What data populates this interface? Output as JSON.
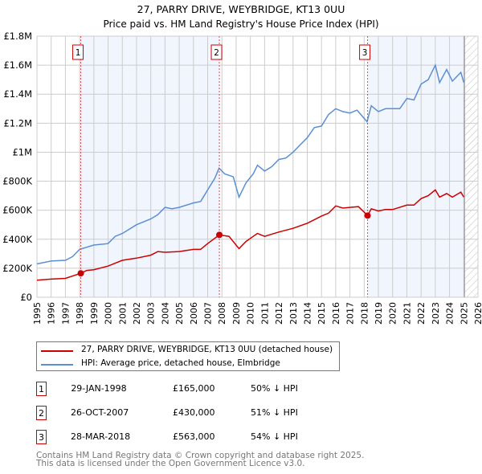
{
  "chart_data": {
    "type": "line",
    "title": "27, PARRY DRIVE, WEYBRIDGE, KT13 0UU",
    "subtitle": "Price paid vs. HM Land Registry's House Price Index (HPI)",
    "xlim": [
      1995,
      2026
    ],
    "ylim": [
      0,
      1800000
    ],
    "x_ticks": [
      1995,
      1996,
      1997,
      1998,
      1999,
      2000,
      2001,
      2002,
      2003,
      2004,
      2005,
      2006,
      2007,
      2008,
      2009,
      2010,
      2011,
      2012,
      2013,
      2014,
      2015,
      2016,
      2017,
      2018,
      2019,
      2020,
      2021,
      2022,
      2023,
      2024,
      2025,
      2026
    ],
    "y_ticks": [
      {
        "v": 0,
        "label": "£0"
      },
      {
        "v": 200000,
        "label": "£200K"
      },
      {
        "v": 400000,
        "label": "£400K"
      },
      {
        "v": 600000,
        "label": "£600K"
      },
      {
        "v": 800000,
        "label": "£800K"
      },
      {
        "v": 1000000,
        "label": "£1M"
      },
      {
        "v": 1200000,
        "label": "£1.2M"
      },
      {
        "v": 1400000,
        "label": "£1.4M"
      },
      {
        "v": 1600000,
        "label": "£1.6M"
      },
      {
        "v": 1800000,
        "label": "£1.8M"
      }
    ],
    "grid": true,
    "data_end": 2025.05,
    "shaded_ranges": [
      [
        1998.08,
        2007.82
      ],
      [
        2018.24,
        2025.05
      ]
    ],
    "series": [
      {
        "name": "27, PARRY DRIVE, WEYBRIDGE, KT13 0UU (detached house)",
        "color": "#cc0000",
        "x": [
          1995,
          1996,
          1997,
          1998.08,
          1998.5,
          1999,
          2000,
          2001,
          2002,
          2003,
          2003.5,
          2004,
          2005,
          2006,
          2006.5,
          2007,
          2007.82,
          2008.5,
          2009.2,
          2009.7,
          2010.2,
          2010.5,
          2011,
          2012,
          2013,
          2014,
          2015,
          2015.5,
          2016,
          2016.5,
          2017,
          2017.6,
          2018.24,
          2018.5,
          2019,
          2019.5,
          2020,
          2021,
          2021.5,
          2022,
          2022.5,
          2023,
          2023.3,
          2023.8,
          2024.2,
          2024.8,
          2025
        ],
        "y": [
          118000,
          125000,
          130000,
          165000,
          185000,
          190000,
          215000,
          255000,
          270000,
          290000,
          315000,
          310000,
          315000,
          330000,
          330000,
          370000,
          430000,
          420000,
          335000,
          385000,
          420000,
          440000,
          420000,
          450000,
          475000,
          510000,
          560000,
          580000,
          630000,
          615000,
          620000,
          625000,
          563000,
          610000,
          595000,
          605000,
          605000,
          635000,
          635000,
          680000,
          700000,
          740000,
          690000,
          715000,
          690000,
          725000,
          690000
        ]
      },
      {
        "name": "HPI: Average price, detached house, Elmbridge",
        "color": "#5b8fd4",
        "x": [
          1995,
          1996,
          1997,
          1997.5,
          1998,
          1999,
          2000,
          2000.5,
          2001,
          2002,
          2003,
          2003.5,
          2004,
          2004.5,
          2005,
          2006,
          2006.5,
          2007,
          2007.5,
          2007.8,
          2008.2,
          2008.8,
          2009.2,
          2009.7,
          2010.2,
          2010.5,
          2011,
          2011.5,
          2012,
          2012.5,
          2013,
          2013.5,
          2014,
          2014.5,
          2015,
          2015.5,
          2016,
          2016.5,
          2017,
          2017.5,
          2018.2,
          2018.5,
          2019,
          2019.5,
          2020,
          2020.5,
          2021,
          2021.5,
          2022,
          2022.5,
          2023,
          2023.3,
          2023.8,
          2024.2,
          2024.8,
          2025
        ],
        "y": [
          230000,
          250000,
          255000,
          280000,
          330000,
          360000,
          370000,
          420000,
          440000,
          500000,
          540000,
          570000,
          620000,
          610000,
          620000,
          650000,
          660000,
          740000,
          820000,
          890000,
          850000,
          830000,
          690000,
          790000,
          850000,
          910000,
          870000,
          900000,
          950000,
          960000,
          1000000,
          1050000,
          1100000,
          1170000,
          1180000,
          1260000,
          1300000,
          1280000,
          1270000,
          1290000,
          1210000,
          1320000,
          1280000,
          1300000,
          1300000,
          1300000,
          1370000,
          1360000,
          1470000,
          1500000,
          1600000,
          1480000,
          1570000,
          1490000,
          1550000,
          1480000
        ]
      }
    ],
    "sales": [
      {
        "id": "1",
        "x": 1998.08,
        "y": 165000,
        "date": "29-JAN-1998",
        "price": "£165,000",
        "hpi_diff": "50% ↓ HPI"
      },
      {
        "id": "2",
        "x": 2007.82,
        "y": 430000,
        "date": "26-OCT-2007",
        "price": "£430,000",
        "hpi_diff": "51% ↓ HPI"
      },
      {
        "id": "3",
        "x": 2018.24,
        "y": 563000,
        "date": "28-MAR-2018",
        "price": "£563,000",
        "hpi_diff": "54% ↓ HPI"
      }
    ]
  },
  "footer": {
    "line1": "Contains HM Land Registry data © Crown copyright and database right 2025.",
    "line2": "This data is licensed under the Open Government Licence v3.0."
  }
}
